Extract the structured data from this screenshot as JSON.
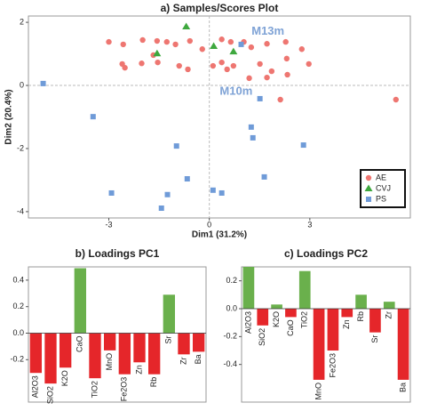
{
  "chart_data": [
    {
      "type": "scatter",
      "title": "a) Samples/Scores Plot",
      "x_label": "Dim1 (31.2%)",
      "y_label": "Dim2 (20.4%)",
      "xlim": [
        -5.4,
        6.0
      ],
      "ylim": [
        -4.2,
        2.2
      ],
      "xticks": [
        -3,
        0,
        3
      ],
      "yticks": [
        -4,
        -2,
        0,
        2
      ],
      "legend": "lower right",
      "annotations": [
        {
          "text": "M13m",
          "x": 1.75,
          "y": 1.7
        },
        {
          "text": "M10m",
          "x": 0.8,
          "y": -0.2
        }
      ],
      "series": [
        {
          "name": "AE",
          "color": "#ee7671",
          "x": [
            -3.0,
            -2.57,
            -1.99,
            -1.56,
            -1.27,
            -1.01,
            -0.58,
            -0.21,
            0.37,
            0.64,
            1.03,
            1.25,
            1.72,
            2.28,
            2.76,
            -2.6,
            -2.52,
            -2.02,
            -1.67,
            -1.54,
            -0.9,
            -0.64,
            0.11,
            0.37,
            0.53,
            0.72,
            1.51,
            1.86,
            2.31,
            2.97,
            2.33,
            1.19,
            1.72,
            2.12,
            5.57
          ],
          "values": [
            1.38,
            1.3,
            1.44,
            1.41,
            1.38,
            1.3,
            1.41,
            1.15,
            1.46,
            1.38,
            1.38,
            1.21,
            1.32,
            1.38,
            1.15,
            0.68,
            0.56,
            0.7,
            0.96,
            0.73,
            0.62,
            0.51,
            0.62,
            0.73,
            0.51,
            0.62,
            0.68,
            0.45,
            0.85,
            0.68,
            0.34,
            0.23,
            0.25,
            -0.45,
            -0.45
          ]
        },
        {
          "name": "CVJ",
          "color": "#3ea83e",
          "x": [
            -0.69,
            -1.56,
            0.13,
            0.72
          ],
          "values": [
            1.86,
            1.01,
            1.24,
            1.07
          ]
        },
        {
          "name": "PS",
          "color": "#6f9bd8",
          "x": [
            -4.96,
            0.95,
            -3.47,
            -0.98,
            1.51,
            1.25,
            1.3,
            2.81,
            -0.66,
            1.64,
            -2.92,
            -1.25,
            0.11,
            0.37,
            -1.43
          ],
          "values": [
            0.06,
            1.3,
            -0.99,
            -1.92,
            -0.42,
            -1.32,
            -1.66,
            -1.89,
            -2.96,
            -2.9,
            -3.41,
            -3.46,
            -3.32,
            -3.41,
            -3.89
          ]
        }
      ]
    },
    {
      "type": "bar",
      "title": "b) Loadings PC1",
      "categories": [
        "Al2O3",
        "SiO2",
        "K2O",
        "CaO",
        "TiO2",
        "MnO",
        "Fe2O3",
        "Zn",
        "Rb",
        "Sr",
        "Zr",
        "Ba"
      ],
      "values": [
        -0.3,
        -0.38,
        -0.26,
        0.49,
        -0.34,
        -0.13,
        -0.31,
        -0.22,
        -0.31,
        0.29,
        -0.16,
        -0.14
      ],
      "positive_color": "#6ab04c",
      "negative_color": "#e5262a",
      "ylim": [
        -0.52,
        0.5
      ],
      "yticks": [
        -0.2,
        {
          "value": 0,
          "label": "0.0"
        },
        0.2,
        0.4
      ]
    },
    {
      "type": "bar",
      "title": "c) Loadings PC2",
      "categories": [
        "Al2O3",
        "SiO2",
        "K2O",
        "CaO",
        "TiO2",
        "MnO",
        "Fe2O3",
        "Zn",
        "Rb",
        "Sr",
        "Zr",
        "Ba"
      ],
      "values": [
        0.3,
        -0.12,
        0.03,
        -0.06,
        0.27,
        -0.51,
        -0.3,
        -0.06,
        0.1,
        -0.17,
        0.05,
        -0.51
      ],
      "positive_color": "#6ab04c",
      "negative_color": "#e5262a",
      "ylim": [
        -0.67,
        0.3
      ],
      "yticks": [
        -0.4,
        -0.2,
        {
          "value": 0,
          "label": "0.0"
        },
        0.2
      ]
    }
  ]
}
